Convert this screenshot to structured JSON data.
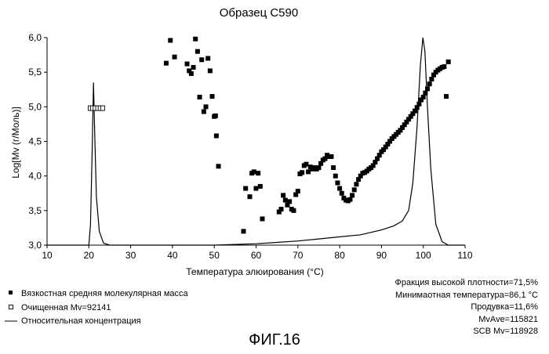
{
  "chart_data": {
    "type": "scatter",
    "title": "Образец C590",
    "xlabel": "Температура элюирования (°С)",
    "ylabel": "Log[Mv (г/Моль)]",
    "xlim": [
      10,
      110
    ],
    "ylim": [
      3.0,
      6.0
    ],
    "x_ticks": [
      "10",
      "20",
      "30",
      "40",
      "50",
      "60",
      "70",
      "80",
      "90",
      "100",
      "110"
    ],
    "y_ticks": [
      "3,0",
      "3,5",
      "4,0",
      "4,5",
      "5,0",
      "5,5",
      "6,0"
    ],
    "grid": false,
    "legend_position": "bottom-left",
    "series": [
      {
        "name": "Вязкостная средняя молекулярная масса",
        "marker": "filled-square",
        "points": [
          [
            38.5,
            5.63
          ],
          [
            39.5,
            5.96
          ],
          [
            40.5,
            5.72
          ],
          [
            43.5,
            5.62
          ],
          [
            44.0,
            5.52
          ],
          [
            44.5,
            5.48
          ],
          [
            45.0,
            5.57
          ],
          [
            45.5,
            5.98
          ],
          [
            46.0,
            5.8
          ],
          [
            46.5,
            5.14
          ],
          [
            47.0,
            5.68
          ],
          [
            47.5,
            4.93
          ],
          [
            48.0,
            5.0
          ],
          [
            48.5,
            5.7
          ],
          [
            49.0,
            5.52
          ],
          [
            49.5,
            5.15
          ],
          [
            50.0,
            4.86
          ],
          [
            50.3,
            4.87
          ],
          [
            50.5,
            4.58
          ],
          [
            51.0,
            4.14
          ],
          [
            57.0,
            3.2
          ],
          [
            57.5,
            3.82
          ],
          [
            58.5,
            3.7
          ],
          [
            59.0,
            4.04
          ],
          [
            59.5,
            4.06
          ],
          [
            60.0,
            3.82
          ],
          [
            60.5,
            4.04
          ],
          [
            61.0,
            3.85
          ],
          [
            61.5,
            3.38
          ],
          [
            65.5,
            3.48
          ],
          [
            66.0,
            3.52
          ],
          [
            66.5,
            3.72
          ],
          [
            67.0,
            3.65
          ],
          [
            67.5,
            3.58
          ],
          [
            68.0,
            3.63
          ],
          [
            68.5,
            3.52
          ],
          [
            69.0,
            3.5
          ],
          [
            69.5,
            3.73
          ],
          [
            70.0,
            3.78
          ],
          [
            70.5,
            4.03
          ],
          [
            71.0,
            4.05
          ],
          [
            71.5,
            4.15
          ],
          [
            72.0,
            4.17
          ],
          [
            72.5,
            4.06
          ],
          [
            73.0,
            4.13
          ],
          [
            73.5,
            4.1
          ],
          [
            74.0,
            4.12
          ],
          [
            74.5,
            4.1
          ],
          [
            75.0,
            4.12
          ],
          [
            75.5,
            4.18
          ],
          [
            76.0,
            4.23
          ],
          [
            76.5,
            4.25
          ],
          [
            77.0,
            4.3
          ],
          [
            77.5,
            4.28
          ],
          [
            78.0,
            4.28
          ],
          [
            78.5,
            4.12
          ],
          [
            79.0,
            4.0
          ],
          [
            79.5,
            3.9
          ],
          [
            80.0,
            3.82
          ],
          [
            80.5,
            3.75
          ],
          [
            81.0,
            3.68
          ],
          [
            81.5,
            3.65
          ],
          [
            82.0,
            3.64
          ],
          [
            82.5,
            3.66
          ],
          [
            83.0,
            3.72
          ],
          [
            83.5,
            3.8
          ],
          [
            84.0,
            3.88
          ],
          [
            84.5,
            3.95
          ],
          [
            85.0,
            4.0
          ],
          [
            85.5,
            4.04
          ],
          [
            86.0,
            4.05
          ],
          [
            86.5,
            4.07
          ],
          [
            87.0,
            4.1
          ],
          [
            87.5,
            4.12
          ],
          [
            88.0,
            4.15
          ],
          [
            88.5,
            4.2
          ],
          [
            89.0,
            4.25
          ],
          [
            89.5,
            4.3
          ],
          [
            90.0,
            4.35
          ],
          [
            90.5,
            4.38
          ],
          [
            91.0,
            4.42
          ],
          [
            91.5,
            4.46
          ],
          [
            92.0,
            4.5
          ],
          [
            92.5,
            4.54
          ],
          [
            93.0,
            4.57
          ],
          [
            93.5,
            4.6
          ],
          [
            94.0,
            4.63
          ],
          [
            94.5,
            4.66
          ],
          [
            95.0,
            4.7
          ],
          [
            95.5,
            4.74
          ],
          [
            96.0,
            4.78
          ],
          [
            96.5,
            4.82
          ],
          [
            97.0,
            4.86
          ],
          [
            97.5,
            4.9
          ],
          [
            98.0,
            4.94
          ],
          [
            98.5,
            4.99
          ],
          [
            99.0,
            5.04
          ],
          [
            99.5,
            5.1
          ],
          [
            100.0,
            5.14
          ],
          [
            100.5,
            5.2
          ],
          [
            101.0,
            5.26
          ],
          [
            101.5,
            5.33
          ],
          [
            102.0,
            5.4
          ],
          [
            102.5,
            5.46
          ],
          [
            103.0,
            5.5
          ],
          [
            103.5,
            5.53
          ],
          [
            104.0,
            5.55
          ],
          [
            104.5,
            5.57
          ],
          [
            105.0,
            5.58
          ],
          [
            105.5,
            5.15
          ],
          [
            106.0,
            5.65
          ]
        ]
      },
      {
        "name": "Очищенная Mv=92141",
        "marker": "open-square",
        "points": [
          [
            20.3,
            4.98
          ],
          [
            20.9,
            4.98
          ],
          [
            21.5,
            4.98
          ],
          [
            22.1,
            4.98
          ],
          [
            22.7,
            4.98
          ],
          [
            23.3,
            4.98
          ]
        ]
      },
      {
        "name": "Относительная концентрация",
        "marker": "line",
        "points": [
          [
            10,
            3.0
          ],
          [
            20.0,
            3.0
          ],
          [
            20.4,
            3.3
          ],
          [
            20.8,
            4.4
          ],
          [
            21.1,
            5.35
          ],
          [
            21.4,
            4.6
          ],
          [
            21.8,
            3.7
          ],
          [
            22.5,
            3.2
          ],
          [
            23.5,
            3.03
          ],
          [
            25,
            3.0
          ],
          [
            50,
            3.0
          ],
          [
            55,
            3.01
          ],
          [
            60,
            3.02
          ],
          [
            65,
            3.04
          ],
          [
            70,
            3.06
          ],
          [
            75,
            3.09
          ],
          [
            80,
            3.12
          ],
          [
            85,
            3.15
          ],
          [
            90,
            3.22
          ],
          [
            93,
            3.28
          ],
          [
            95,
            3.35
          ],
          [
            96.5,
            3.5
          ],
          [
            97.5,
            3.9
          ],
          [
            98.5,
            4.7
          ],
          [
            99.3,
            5.6
          ],
          [
            99.9,
            6.0
          ],
          [
            100.4,
            5.8
          ],
          [
            101.0,
            5.0
          ],
          [
            101.8,
            4.1
          ],
          [
            103.0,
            3.3
          ],
          [
            104.5,
            3.05
          ],
          [
            106,
            3.0
          ],
          [
            110,
            3.0
          ]
        ]
      }
    ]
  },
  "stats": [
    "Фракция высокой плотности=71,5%",
    "Минимаотная температура=86,1 °С",
    "Продувка=11,6%",
    "MvAve=115821",
    "SCB Mv=118928"
  ],
  "figure_caption": "ФИГ.16"
}
